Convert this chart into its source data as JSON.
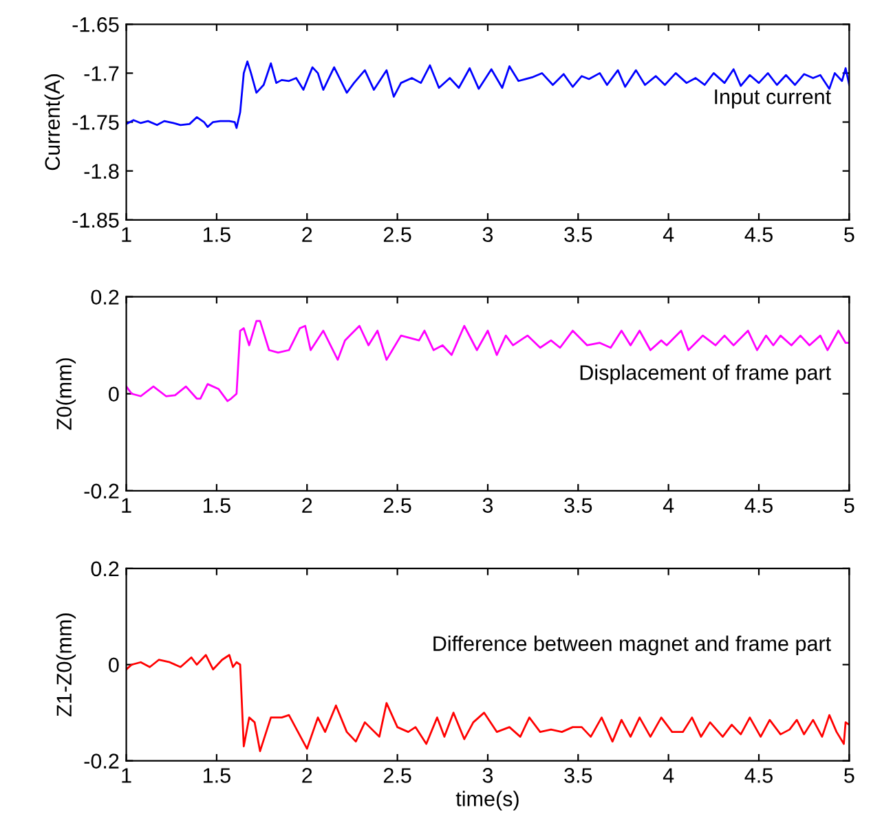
{
  "chart_data": [
    {
      "type": "line",
      "ylabel": "Current(A)",
      "annotations": [
        "Input current"
      ],
      "xlim": [
        1,
        5
      ],
      "ylim": [
        -1.85,
        -1.65
      ],
      "xticks": [
        1,
        1.5,
        2,
        2.5,
        3,
        3.5,
        4,
        4.5,
        5
      ],
      "yticks": [
        -1.85,
        -1.8,
        -1.75,
        -1.7,
        -1.65
      ],
      "x": [
        1.0,
        1.04,
        1.08,
        1.12,
        1.17,
        1.21,
        1.26,
        1.3,
        1.35,
        1.39,
        1.43,
        1.45,
        1.48,
        1.52,
        1.57,
        1.6,
        1.61,
        1.63,
        1.65,
        1.67,
        1.69,
        1.72,
        1.76,
        1.8,
        1.83,
        1.86,
        1.9,
        1.94,
        1.98,
        2.03,
        2.06,
        2.09,
        2.15,
        2.18,
        2.22,
        2.26,
        2.32,
        2.37,
        2.44,
        2.48,
        2.52,
        2.58,
        2.63,
        2.68,
        2.73,
        2.79,
        2.84,
        2.9,
        2.95,
        3.02,
        3.08,
        3.12,
        3.17,
        3.25,
        3.3,
        3.36,
        3.42,
        3.47,
        3.52,
        3.56,
        3.62,
        3.66,
        3.72,
        3.76,
        3.82,
        3.87,
        3.93,
        3.98,
        4.04,
        4.1,
        4.15,
        4.2,
        4.25,
        4.31,
        4.36,
        4.4,
        4.45,
        4.5,
        4.55,
        4.6,
        4.65,
        4.7,
        4.75,
        4.8,
        4.84,
        4.89,
        4.92,
        4.96,
        4.98,
        5.0
      ],
      "series": [
        {
          "color": "#0000ff",
          "values": [
            -1.752,
            -1.748,
            -1.751,
            -1.749,
            -1.753,
            -1.749,
            -1.751,
            -1.753,
            -1.752,
            -1.745,
            -1.75,
            -1.755,
            -1.75,
            -1.749,
            -1.749,
            -1.75,
            -1.756,
            -1.74,
            -1.7,
            -1.688,
            -1.7,
            -1.72,
            -1.712,
            -1.69,
            -1.71,
            -1.707,
            -1.708,
            -1.705,
            -1.717,
            -1.694,
            -1.7,
            -1.717,
            -1.694,
            -1.705,
            -1.72,
            -1.71,
            -1.697,
            -1.717,
            -1.697,
            -1.724,
            -1.71,
            -1.705,
            -1.71,
            -1.692,
            -1.715,
            -1.705,
            -1.715,
            -1.695,
            -1.716,
            -1.696,
            -1.715,
            -1.693,
            -1.708,
            -1.704,
            -1.7,
            -1.712,
            -1.701,
            -1.714,
            -1.703,
            -1.706,
            -1.7,
            -1.712,
            -1.697,
            -1.714,
            -1.697,
            -1.712,
            -1.703,
            -1.712,
            -1.7,
            -1.71,
            -1.705,
            -1.712,
            -1.7,
            -1.71,
            -1.696,
            -1.713,
            -1.702,
            -1.71,
            -1.7,
            -1.712,
            -1.702,
            -1.712,
            -1.701,
            -1.705,
            -1.702,
            -1.716,
            -1.7,
            -1.708,
            -1.695,
            -1.712
          ]
        }
      ]
    },
    {
      "type": "line",
      "ylabel": "Z0(mm)",
      "annotations": [
        "Displacement of frame part"
      ],
      "xlim": [
        1,
        5
      ],
      "ylim": [
        -0.2,
        0.2
      ],
      "xticks": [
        1,
        1.5,
        2,
        2.5,
        3,
        3.5,
        4,
        4.5,
        5
      ],
      "yticks": [
        -0.2,
        0,
        0.2
      ],
      "x": [
        1.0,
        1.03,
        1.08,
        1.15,
        1.22,
        1.27,
        1.33,
        1.39,
        1.41,
        1.45,
        1.51,
        1.56,
        1.58,
        1.61,
        1.63,
        1.65,
        1.68,
        1.72,
        1.74,
        1.79,
        1.84,
        1.9,
        1.96,
        1.99,
        2.02,
        2.09,
        2.17,
        2.21,
        2.29,
        2.34,
        2.39,
        2.44,
        2.52,
        2.57,
        2.62,
        2.65,
        2.7,
        2.75,
        2.8,
        2.87,
        2.94,
        3.0,
        3.05,
        3.1,
        3.14,
        3.22,
        3.29,
        3.35,
        3.4,
        3.47,
        3.55,
        3.62,
        3.68,
        3.74,
        3.79,
        3.84,
        3.9,
        3.96,
        3.99,
        4.07,
        4.11,
        4.19,
        4.26,
        4.31,
        4.36,
        4.44,
        4.49,
        4.54,
        4.58,
        4.62,
        4.68,
        4.73,
        4.78,
        4.84,
        4.88,
        4.94,
        4.98,
        5.0
      ],
      "series": [
        {
          "color": "#ff00ff",
          "values": [
            0.015,
            0.0,
            -0.005,
            0.015,
            -0.005,
            -0.003,
            0.015,
            -0.01,
            -0.01,
            0.02,
            0.01,
            -0.015,
            -0.01,
            0.0,
            0.13,
            0.135,
            0.1,
            0.15,
            0.15,
            0.09,
            0.085,
            0.09,
            0.135,
            0.14,
            0.09,
            0.13,
            0.07,
            0.11,
            0.14,
            0.1,
            0.13,
            0.07,
            0.12,
            0.115,
            0.11,
            0.13,
            0.09,
            0.1,
            0.08,
            0.14,
            0.09,
            0.13,
            0.08,
            0.12,
            0.1,
            0.12,
            0.095,
            0.11,
            0.095,
            0.13,
            0.1,
            0.105,
            0.095,
            0.13,
            0.1,
            0.13,
            0.09,
            0.11,
            0.1,
            0.13,
            0.09,
            0.12,
            0.1,
            0.12,
            0.1,
            0.13,
            0.09,
            0.12,
            0.1,
            0.12,
            0.1,
            0.12,
            0.1,
            0.12,
            0.09,
            0.13,
            0.105,
            0.105
          ]
        }
      ]
    },
    {
      "type": "line",
      "xlabel": "time(s)",
      "ylabel": "Z1-Z0(mm)",
      "annotations": [
        "Difference between magnet and frame part"
      ],
      "xlim": [
        1,
        5
      ],
      "ylim": [
        -0.2,
        0.2
      ],
      "xticks": [
        1,
        1.5,
        2,
        2.5,
        3,
        3.5,
        4,
        4.5,
        5
      ],
      "yticks": [
        -0.2,
        0,
        0.2
      ],
      "x": [
        1.0,
        1.03,
        1.08,
        1.13,
        1.18,
        1.24,
        1.3,
        1.36,
        1.39,
        1.44,
        1.48,
        1.53,
        1.57,
        1.59,
        1.61,
        1.63,
        1.65,
        1.68,
        1.71,
        1.74,
        1.8,
        1.86,
        1.9,
        1.95,
        2.0,
        2.06,
        2.1,
        2.16,
        2.22,
        2.27,
        2.32,
        2.4,
        2.44,
        2.5,
        2.56,
        2.6,
        2.66,
        2.72,
        2.76,
        2.81,
        2.87,
        2.92,
        2.98,
        3.05,
        3.12,
        3.18,
        3.23,
        3.29,
        3.35,
        3.41,
        3.47,
        3.52,
        3.57,
        3.63,
        3.69,
        3.74,
        3.79,
        3.84,
        3.9,
        3.96,
        4.02,
        4.08,
        4.13,
        4.18,
        4.23,
        4.3,
        4.35,
        4.4,
        4.45,
        4.51,
        4.56,
        4.62,
        4.67,
        4.71,
        4.75,
        4.8,
        4.85,
        4.89,
        4.93,
        4.97,
        4.98,
        5.0
      ],
      "series": [
        {
          "color": "#ff0000",
          "values": [
            -0.01,
            0.0,
            0.005,
            -0.005,
            0.01,
            0.005,
            -0.005,
            0.015,
            0.0,
            0.02,
            -0.01,
            0.01,
            0.02,
            -0.005,
            0.005,
            0.0,
            -0.17,
            -0.11,
            -0.12,
            -0.18,
            -0.11,
            -0.11,
            -0.105,
            -0.14,
            -0.175,
            -0.11,
            -0.14,
            -0.085,
            -0.14,
            -0.16,
            -0.12,
            -0.15,
            -0.08,
            -0.13,
            -0.14,
            -0.13,
            -0.165,
            -0.11,
            -0.15,
            -0.1,
            -0.155,
            -0.12,
            -0.1,
            -0.14,
            -0.13,
            -0.15,
            -0.11,
            -0.14,
            -0.135,
            -0.14,
            -0.13,
            -0.13,
            -0.15,
            -0.11,
            -0.16,
            -0.115,
            -0.15,
            -0.11,
            -0.15,
            -0.11,
            -0.14,
            -0.14,
            -0.11,
            -0.15,
            -0.12,
            -0.15,
            -0.125,
            -0.145,
            -0.11,
            -0.15,
            -0.115,
            -0.145,
            -0.135,
            -0.115,
            -0.145,
            -0.115,
            -0.15,
            -0.105,
            -0.14,
            -0.165,
            -0.12,
            -0.125
          ]
        }
      ]
    }
  ]
}
